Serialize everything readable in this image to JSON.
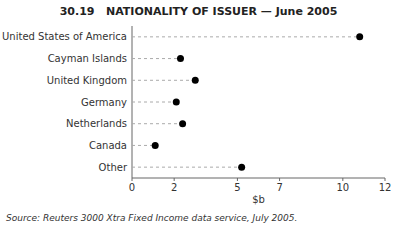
{
  "chart_data": {
    "type": "lollipop",
    "orientation": "horizontal",
    "title": "30.19   NATIONALITY OF ISSUER — June 2005",
    "categories": [
      "United States of America",
      "Cayman Islands",
      "United Kingdom",
      "Germany",
      "Netherlands",
      "Canada",
      "Other"
    ],
    "values": [
      10.8,
      2.3,
      3.0,
      2.1,
      2.4,
      1.1,
      5.2
    ],
    "color": "#000000",
    "xlabel": "$b",
    "xlim": [
      0,
      12
    ],
    "xticks": [
      0,
      2,
      5,
      7,
      10,
      12
    ],
    "annotations": [
      "Source: Reuters 3000 Xtra Fixed Income data service, July 2005."
    ]
  }
}
